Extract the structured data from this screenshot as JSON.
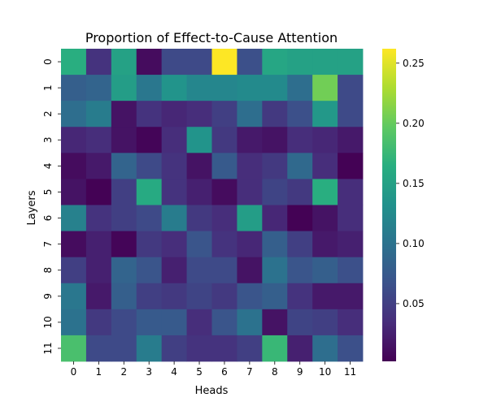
{
  "chart_data": {
    "type": "heatmap",
    "title": "Proportion of Effect-to-Cause Attention",
    "xlabel": "Heads",
    "ylabel": "Layers",
    "x_categories": [
      "0",
      "1",
      "2",
      "3",
      "4",
      "5",
      "6",
      "7",
      "8",
      "9",
      "10",
      "11"
    ],
    "y_categories": [
      "0",
      "1",
      "2",
      "3",
      "4",
      "5",
      "6",
      "7",
      "8",
      "9",
      "10",
      "11"
    ],
    "values": [
      [
        0.165,
        0.04,
        0.15,
        0.01,
        0.06,
        0.06,
        0.262,
        0.065,
        0.155,
        0.15,
        0.15,
        0.15
      ],
      [
        0.08,
        0.085,
        0.145,
        0.105,
        0.135,
        0.12,
        0.12,
        0.125,
        0.125,
        0.095,
        0.205,
        0.06
      ],
      [
        0.095,
        0.11,
        0.015,
        0.04,
        0.03,
        0.035,
        0.05,
        0.095,
        0.045,
        0.065,
        0.14,
        0.06
      ],
      [
        0.03,
        0.035,
        0.015,
        0.005,
        0.035,
        0.135,
        0.045,
        0.02,
        0.015,
        0.035,
        0.03,
        0.02
      ],
      [
        0.01,
        0.02,
        0.085,
        0.06,
        0.04,
        0.015,
        0.075,
        0.035,
        0.045,
        0.09,
        0.035,
        0.003
      ],
      [
        0.015,
        0.003,
        0.05,
        0.16,
        0.04,
        0.025,
        0.01,
        0.035,
        0.055,
        0.045,
        0.165,
        0.035
      ],
      [
        0.115,
        0.04,
        0.05,
        0.06,
        0.11,
        0.045,
        0.035,
        0.145,
        0.03,
        0.003,
        0.015,
        0.035
      ],
      [
        0.01,
        0.025,
        0.005,
        0.045,
        0.035,
        0.07,
        0.04,
        0.03,
        0.08,
        0.05,
        0.02,
        0.025
      ],
      [
        0.05,
        0.025,
        0.085,
        0.07,
        0.025,
        0.06,
        0.06,
        0.015,
        0.1,
        0.07,
        0.08,
        0.065
      ],
      [
        0.105,
        0.02,
        0.08,
        0.05,
        0.045,
        0.055,
        0.045,
        0.07,
        0.08,
        0.04,
        0.02,
        0.02
      ],
      [
        0.1,
        0.045,
        0.06,
        0.075,
        0.075,
        0.035,
        0.07,
        0.1,
        0.015,
        0.055,
        0.05,
        0.035
      ],
      [
        0.185,
        0.06,
        0.06,
        0.11,
        0.05,
        0.04,
        0.04,
        0.05,
        0.175,
        0.025,
        0.095,
        0.065
      ]
    ],
    "vmin": 0.002,
    "vmax": 0.262,
    "colorbar_ticks": [
      0.05,
      0.1,
      0.15,
      0.2,
      0.25
    ],
    "colorbar_tick_labels": [
      "0.05",
      "0.10",
      "0.15",
      "0.20",
      "0.25"
    ],
    "colormap": "viridis",
    "grid": false
  }
}
